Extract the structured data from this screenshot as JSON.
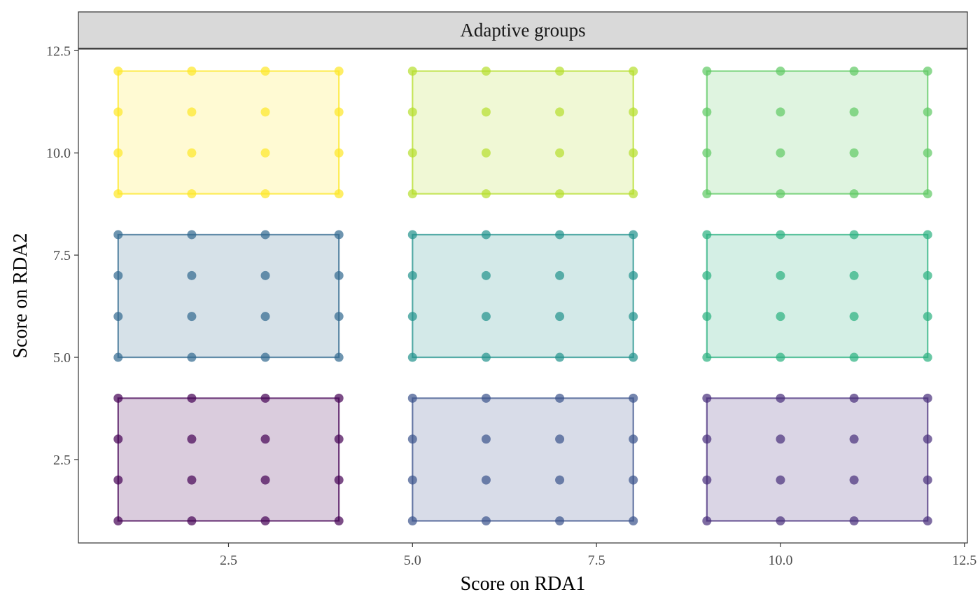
{
  "chart_data": {
    "type": "scatter",
    "facet_label": "Adaptive groups",
    "xlabel": "Score on RDA1",
    "ylabel": "Score on RDA2",
    "xlim": [
      0.46,
      12.54
    ],
    "ylim": [
      0.46,
      12.54
    ],
    "x_ticks": [
      2.5,
      5.0,
      7.5,
      10.0,
      12.5
    ],
    "x_tick_labels": [
      "2.5",
      "5.0",
      "7.5",
      "10.0",
      "12.5"
    ],
    "y_ticks": [
      2.5,
      5.0,
      7.5,
      10.0,
      12.5
    ],
    "y_tick_labels": [
      "2.5",
      "5.0",
      "7.5",
      "10.0",
      "12.5"
    ],
    "grid": false,
    "groups": [
      {
        "x": [
          1,
          2,
          3,
          4
        ],
        "y": [
          1,
          2,
          3,
          4
        ],
        "color": "#440154"
      },
      {
        "x": [
          5,
          6,
          7,
          8
        ],
        "y": [
          1,
          2,
          3,
          4
        ],
        "color": "#3b528b"
      },
      {
        "x": [
          9,
          10,
          11,
          12
        ],
        "y": [
          1,
          2,
          3,
          4
        ],
        "color": "#472d7b"
      },
      {
        "x": [
          1,
          2,
          3,
          4
        ],
        "y": [
          5,
          6,
          7,
          8
        ],
        "color": "#31688e"
      },
      {
        "x": [
          5,
          6,
          7,
          8
        ],
        "y": [
          5,
          6,
          7,
          8
        ],
        "color": "#21918c"
      },
      {
        "x": [
          9,
          10,
          11,
          12
        ],
        "y": [
          5,
          6,
          7,
          8
        ],
        "color": "#2ab07f"
      },
      {
        "x": [
          1,
          2,
          3,
          4
        ],
        "y": [
          9,
          10,
          11,
          12
        ],
        "color": "#fde725"
      },
      {
        "x": [
          5,
          6,
          7,
          8
        ],
        "y": [
          9,
          10,
          11,
          12
        ],
        "color": "#b5de2b"
      },
      {
        "x": [
          9,
          10,
          11,
          12
        ],
        "y": [
          9,
          10,
          11,
          12
        ],
        "color": "#5ec962"
      }
    ]
  }
}
